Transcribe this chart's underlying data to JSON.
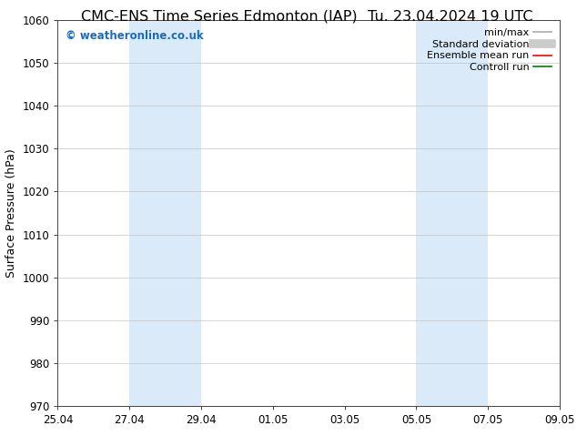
{
  "title_left": "CMC-ENS Time Series Edmonton (IAP)",
  "title_right": "Tu. 23.04.2024 19 UTC",
  "ylabel": "Surface Pressure (hPa)",
  "ylim": [
    970,
    1060
  ],
  "yticks": [
    970,
    980,
    990,
    1000,
    1010,
    1020,
    1030,
    1040,
    1050,
    1060
  ],
  "xtick_labels": [
    "25.04",
    "27.04",
    "29.04",
    "01.05",
    "03.05",
    "05.05",
    "07.05",
    "09.05"
  ],
  "xlim": [
    0,
    14
  ],
  "shaded_regions": [
    {
      "x_start": 2,
      "x_end": 4
    },
    {
      "x_start": 10,
      "x_end": 12
    }
  ],
  "shaded_color": "#daeaf8",
  "watermark_text": "© weatheronline.co.uk",
  "watermark_color": "#1a6bbf",
  "legend_items": [
    {
      "label": "min/max",
      "color": "#aaaaaa",
      "lw": 1.2
    },
    {
      "label": "Standard deviation",
      "color": "#cccccc",
      "lw": 7
    },
    {
      "label": "Ensemble mean run",
      "color": "#ff0000",
      "lw": 1.2
    },
    {
      "label": "Controll run",
      "color": "#008000",
      "lw": 1.2
    }
  ],
  "title_fontsize": 11.5,
  "tick_fontsize": 8.5,
  "ylabel_fontsize": 9,
  "watermark_fontsize": 8.5,
  "legend_fontsize": 8,
  "grid_color": "#bbbbbb",
  "grid_alpha": 0.7,
  "bg_color": "#ffffff"
}
